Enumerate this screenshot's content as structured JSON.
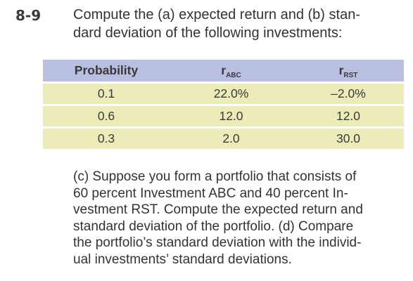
{
  "problem": {
    "number": "8-9",
    "intro_lines": [
      "Compute the (a) expected return and (b) stan-",
      "dard deviation of the following investments:"
    ]
  },
  "table": {
    "headers": {
      "probability": "Probability",
      "r_abc_symbol": "r",
      "r_abc_sub": "ABC",
      "r_rst_symbol": "r",
      "r_rst_sub": "RST"
    },
    "rows": [
      {
        "probability": "0.1",
        "abc": "22.0%",
        "rst": "–2.0%"
      },
      {
        "probability": "0.6",
        "abc": "12.0",
        "rst": "12.0"
      },
      {
        "probability": "0.3",
        "abc": "2.0",
        "rst": "30.0"
      }
    ]
  },
  "question_lines": [
    "(c) Suppose you form a portfolio that consists of",
    "60 percent Investment ABC and 40 percent In-",
    "vestment RST. Compute the expected return and",
    "standard deviation of the portfolio. (d) Compare",
    "the portfolio’s standard deviation with the individ-",
    "ual investments’ standard deviations."
  ],
  "colors": {
    "header_bg": "#b8bfe0",
    "row_bg": "#ececba"
  }
}
